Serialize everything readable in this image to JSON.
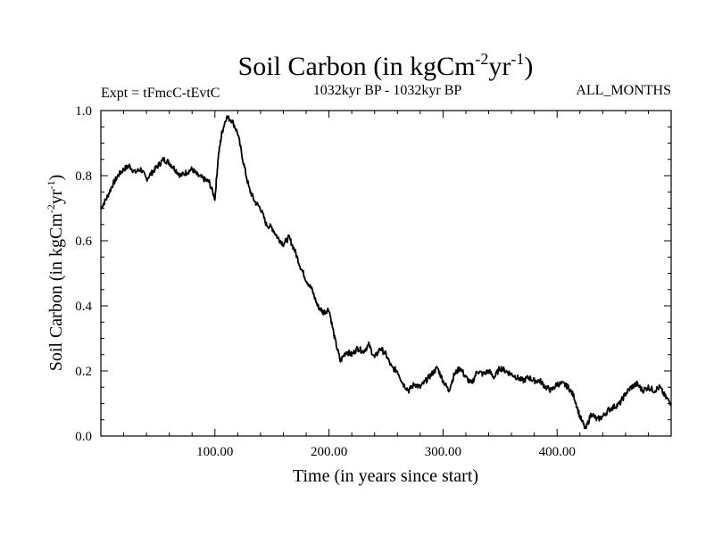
{
  "chart_data": {
    "type": "line",
    "title": "Soil Carbon (in kgCm",
    "title_sup1": "-2",
    "title_mid": "yr",
    "title_sup2": "-1",
    "title_end": ")",
    "experiment_label": "Expt = tFmcC-tEvtC",
    "period_label": "1032kyr BP - 1032kyr BP",
    "months_label": "ALL_MONTHS",
    "xlabel": "Time (in years since start)",
    "ylabel": "Soil Carbon (in kgCm",
    "ylabel_sup1": "-2",
    "ylabel_mid": "yr",
    "ylabel_sup2": "-1",
    "ylabel_end": ")",
    "xlim": [
      0,
      500
    ],
    "ylim": [
      0,
      1.0
    ],
    "x_ticks": [
      100,
      200,
      300,
      400
    ],
    "x_tick_labels": [
      "100.00",
      "200.00",
      "300.00",
      "400.00"
    ],
    "y_ticks": [
      0,
      0.2,
      0.4,
      0.6,
      0.8,
      1.0
    ],
    "y_tick_labels": [
      "0.0",
      "0.2",
      "0.4",
      "0.6",
      "0.8",
      "1.0"
    ],
    "series": [
      {
        "name": "Soil Carbon",
        "color": "#000000",
        "x": [
          0,
          5,
          10,
          15,
          20,
          25,
          30,
          35,
          40,
          45,
          50,
          55,
          60,
          65,
          70,
          75,
          80,
          85,
          90,
          95,
          100,
          103,
          106,
          110,
          115,
          120,
          125,
          130,
          135,
          140,
          145,
          150,
          155,
          160,
          165,
          170,
          175,
          180,
          185,
          190,
          195,
          200,
          205,
          210,
          215,
          220,
          225,
          230,
          235,
          240,
          245,
          250,
          255,
          260,
          265,
          270,
          275,
          280,
          285,
          290,
          295,
          300,
          305,
          310,
          315,
          320,
          325,
          330,
          335,
          340,
          345,
          350,
          355,
          360,
          365,
          370,
          375,
          380,
          385,
          390,
          395,
          400,
          405,
          410,
          415,
          420,
          425,
          430,
          435,
          440,
          445,
          450,
          455,
          460,
          465,
          470,
          475,
          480,
          485,
          490,
          495,
          500
        ],
        "values": [
          0.7,
          0.73,
          0.77,
          0.8,
          0.82,
          0.83,
          0.81,
          0.82,
          0.79,
          0.81,
          0.83,
          0.85,
          0.84,
          0.82,
          0.8,
          0.81,
          0.82,
          0.8,
          0.79,
          0.78,
          0.73,
          0.86,
          0.93,
          0.98,
          0.97,
          0.93,
          0.84,
          0.76,
          0.72,
          0.7,
          0.65,
          0.64,
          0.61,
          0.59,
          0.61,
          0.57,
          0.52,
          0.48,
          0.45,
          0.4,
          0.38,
          0.39,
          0.3,
          0.23,
          0.26,
          0.25,
          0.27,
          0.26,
          0.28,
          0.24,
          0.27,
          0.25,
          0.21,
          0.2,
          0.16,
          0.14,
          0.16,
          0.15,
          0.17,
          0.19,
          0.21,
          0.17,
          0.14,
          0.19,
          0.21,
          0.18,
          0.16,
          0.2,
          0.19,
          0.2,
          0.18,
          0.21,
          0.2,
          0.19,
          0.18,
          0.17,
          0.18,
          0.17,
          0.17,
          0.15,
          0.14,
          0.16,
          0.16,
          0.15,
          0.12,
          0.06,
          0.02,
          0.07,
          0.05,
          0.06,
          0.08,
          0.09,
          0.1,
          0.13,
          0.15,
          0.16,
          0.14,
          0.15,
          0.14,
          0.15,
          0.12,
          0.1
        ]
      }
    ]
  }
}
